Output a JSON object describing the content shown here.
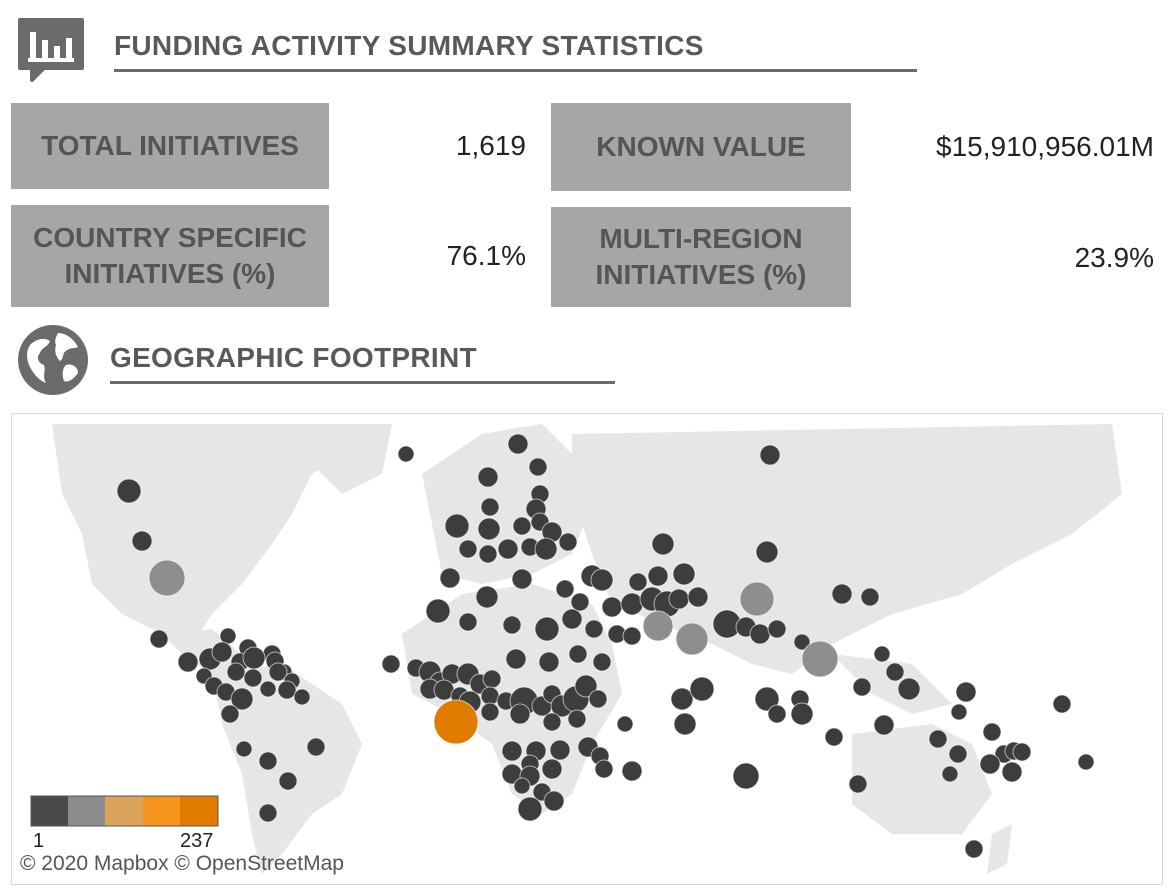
{
  "summary": {
    "title": "FUNDING ACTIVITY SUMMARY STATISTICS",
    "icon": "chart-speech-bubble-icon",
    "stats": [
      {
        "label": "TOTAL INITIATIVES",
        "value": "1,619"
      },
      {
        "label": "KNOWN VALUE",
        "value": "$15,910,956.01M"
      },
      {
        "label": "COUNTRY SPECIFIC INITIATIVES (%)",
        "value": "76.1%"
      },
      {
        "label": "MULTI-REGION INITIATIVES (%)",
        "value": "23.9%"
      }
    ]
  },
  "footprint": {
    "title": "GEOGRAPHIC FOOTPRINT",
    "icon": "globe-icon"
  },
  "map": {
    "attribution": "© 2020 Mapbox  © OpenStreetMap",
    "legend": {
      "min": "1",
      "max": "237",
      "colors": [
        "#4a4a4a",
        "#8c8c8c",
        "#d9a35a",
        "#f7941d",
        "#e07b00"
      ]
    },
    "colors": {
      "land": "#e6e6e6",
      "dark_marker": "#3d3d3d",
      "light_marker": "#8e8e8e",
      "highlight_marker": "#e07b00"
    }
  }
}
